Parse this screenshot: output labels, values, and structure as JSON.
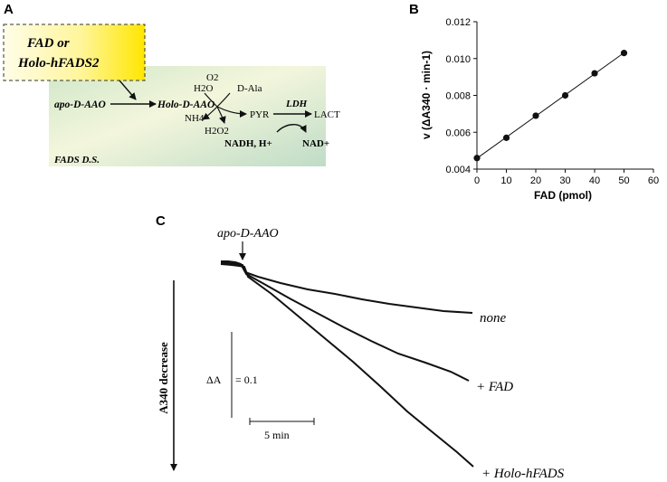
{
  "panel_a": {
    "letter": "A",
    "box_line1": "FAD or",
    "box_line2": "Holo-hFADS2",
    "apo": "apo-D-AAO",
    "holo": "Holo-D-AAO",
    "h2o": "H2O",
    "o2": "O2",
    "dala": "D-Ala",
    "nh4": "NH4",
    "h2o2": "H2O2",
    "pyr": "PYR",
    "ldh": "LDH",
    "lact": "LACT",
    "nadh": "NADH, H+",
    "nad": "NAD+",
    "fads_ds": "FADS D.S."
  },
  "panel_b": {
    "letter": "B",
    "chart_data": {
      "type": "scatter",
      "xlabel": "FAD (pmol)",
      "ylabel": "v (ΔA340 · min-1)",
      "xlim": [
        0,
        60
      ],
      "ylim": [
        0.004,
        0.012
      ],
      "x_ticks": [
        "0",
        "10",
        "20",
        "30",
        "40",
        "50",
        "60"
      ],
      "y_ticks": [
        "0.004",
        "0.006",
        "0.008",
        "0.010",
        "0.012"
      ],
      "x": [
        0,
        10,
        20,
        30,
        40,
        50
      ],
      "y": [
        0.0046,
        0.0057,
        0.0069,
        0.008,
        0.0092,
        0.0103
      ],
      "fit_line": true,
      "grid": false
    }
  },
  "panel_c": {
    "letter": "C",
    "addition_label": "apo-D-AAO",
    "y_axis_label": "A340 decrease",
    "scale_dA_label": "ΔA",
    "scale_dA_value": "= 0.1",
    "scale_time_label": "5 min",
    "traces": [
      {
        "label": "none"
      },
      {
        "label": "+ FAD"
      },
      {
        "label": "+ Holo-hFADS"
      }
    ]
  }
}
